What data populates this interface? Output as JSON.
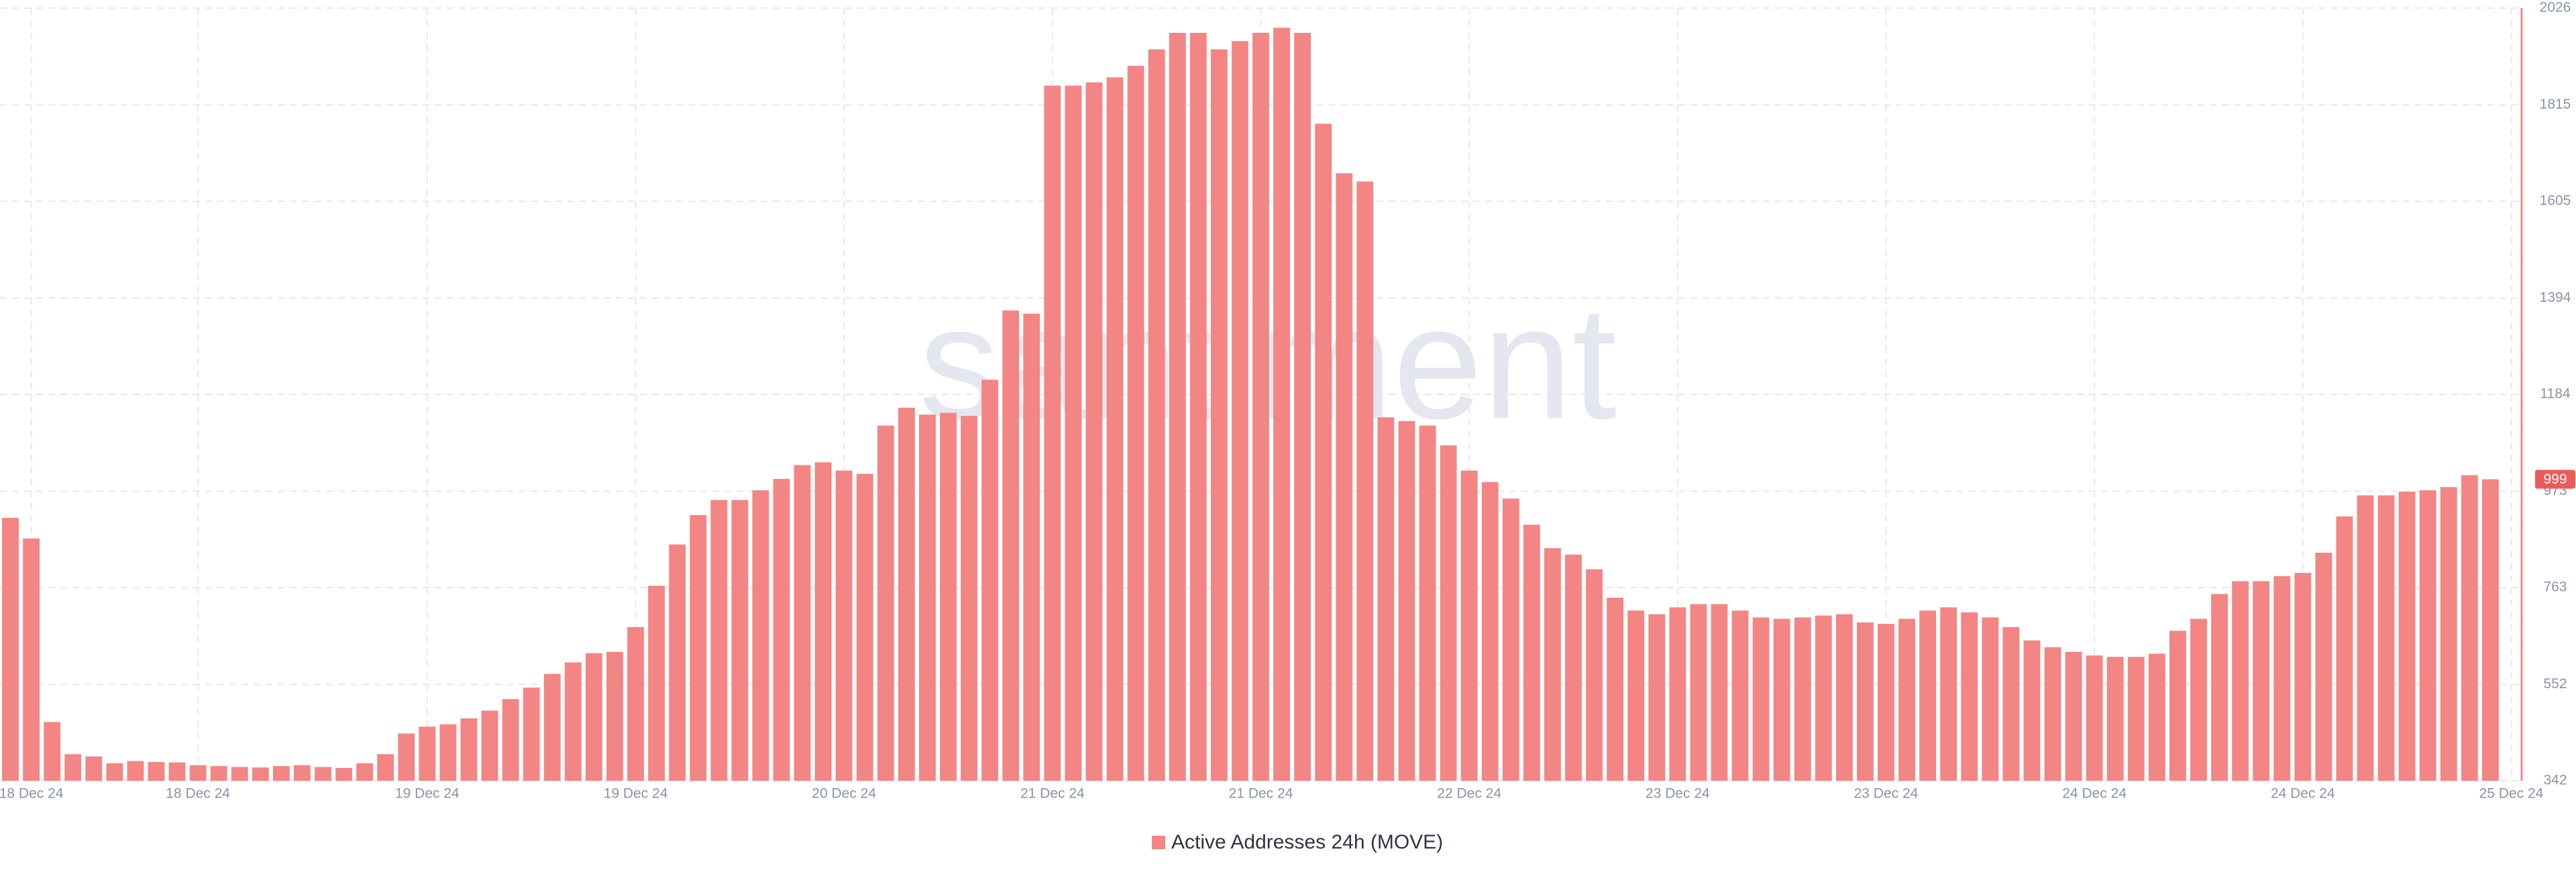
{
  "chart_data": {
    "type": "bar",
    "watermark": "santiment",
    "categories": [
      null,
      "18 Dec 24",
      null,
      null,
      null,
      null,
      null,
      null,
      null,
      "18 Dec 24",
      null,
      null,
      null,
      null,
      null,
      null,
      null,
      null,
      null,
      null,
      "19 Dec 24",
      null,
      null,
      null,
      null,
      null,
      null,
      null,
      null,
      null,
      "19 Dec 24",
      null,
      null,
      null,
      null,
      null,
      null,
      null,
      null,
      null,
      "20 Dec 24",
      null,
      null,
      null,
      null,
      null,
      null,
      null,
      null,
      null,
      "21 Dec 24",
      null,
      null,
      null,
      null,
      null,
      null,
      null,
      null,
      null,
      "21 Dec 24",
      null,
      null,
      null,
      null,
      null,
      null,
      null,
      null,
      null,
      "22 Dec 24",
      null,
      null,
      null,
      null,
      null,
      null,
      null,
      null,
      null,
      "23 Dec 24",
      null,
      null,
      null,
      null,
      null,
      null,
      null,
      null,
      null,
      "23 Dec 24",
      null,
      null,
      null,
      null,
      null,
      null,
      null,
      null,
      null,
      "24 Dec 24",
      null,
      null,
      null,
      null,
      null,
      null,
      null,
      null,
      null,
      "24 Dec 24",
      null,
      null,
      null,
      null,
      null,
      null,
      null,
      null,
      null,
      "25 Dec 24"
    ],
    "series": [
      {
        "name": "Active Addresses 24h (MOVE)",
        "color": "#f38585",
        "values": [
          915,
          870,
          470,
          400,
          395,
          380,
          385,
          383,
          382,
          376,
          374,
          372,
          371,
          374,
          376,
          372,
          370,
          380,
          400,
          445,
          460,
          465,
          478,
          495,
          520,
          545,
          575,
          600,
          620,
          623,
          677,
          767,
          857,
          921,
          954,
          954,
          975,
          1000,
          1030,
          1036,
          1018,
          1011,
          1116,
          1155,
          1140,
          1144,
          1137,
          1216,
          1367,
          1360,
          1857,
          1857,
          1864,
          1875,
          1900,
          1936,
          1972,
          1972,
          1936,
          1954,
          1972,
          1983,
          1972,
          1774,
          1666,
          1648,
          1134,
          1126,
          1116,
          1073,
          1018,
          993,
          957,
          900,
          849,
          835,
          803,
          741,
          713,
          705,
          720,
          727,
          727,
          713,
          698,
          695,
          698,
          702,
          705,
          687,
          684,
          695,
          713,
          720,
          709,
          698,
          677,
          648,
          633,
          623,
          615,
          612,
          612,
          619,
          669,
          695,
          749,
          777,
          777,
          788,
          795,
          839,
          918,
          964,
          964,
          972,
          975,
          982,
          1008,
          999,
          null
        ]
      }
    ],
    "current_value": 999,
    "ylim": [
      342,
      2026
    ],
    "yticks": [
      342,
      552,
      763,
      973,
      1184,
      1394,
      1605,
      1815,
      2026
    ],
    "grid": true
  }
}
